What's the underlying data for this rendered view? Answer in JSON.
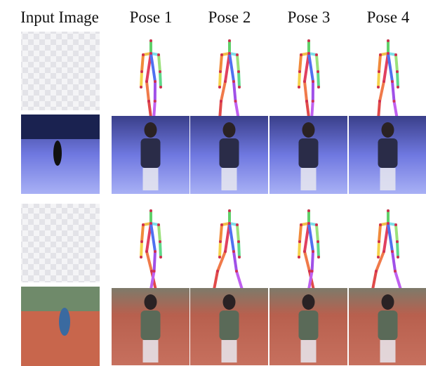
{
  "header": {
    "columns": [
      "Input Image",
      "Pose 1",
      "Pose 2",
      "Pose 3",
      "Pose 4"
    ]
  }
}
